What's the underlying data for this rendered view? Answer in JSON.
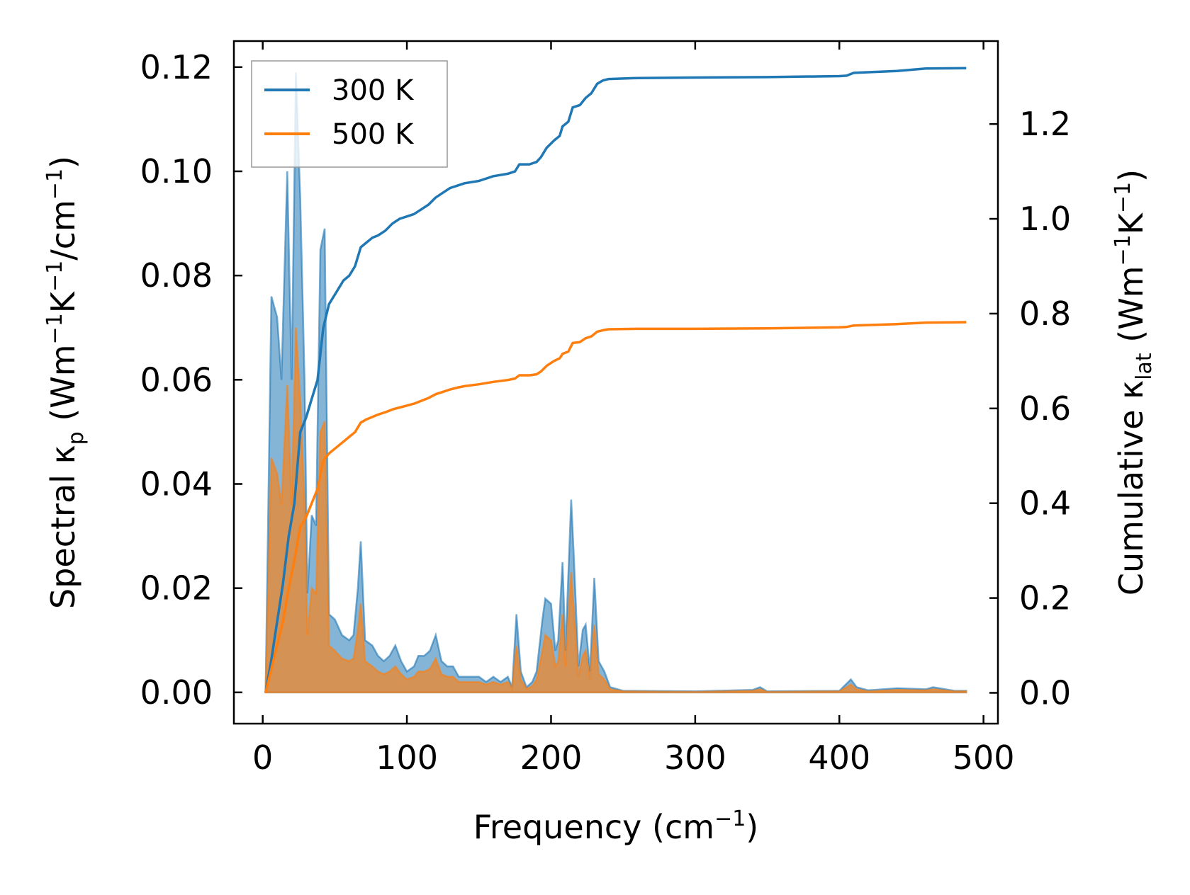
{
  "chart_data": {
    "type": "line",
    "x_label_main": "Frequency (cm",
    "x_label_sup": "−1",
    "x_label_end": ")",
    "xlim": [
      -20,
      510
    ],
    "x_ticks": [
      "0",
      "100",
      "200",
      "300",
      "400",
      "500"
    ],
    "x_tick_values": [
      0,
      100,
      200,
      300,
      400,
      500
    ],
    "left_axis": {
      "label_parts": [
        "Spectral κ",
        "p",
        " (Wm",
        "−1",
        "K",
        "−1",
        "/cm",
        "−1",
        ")"
      ],
      "ylim": [
        -0.006,
        0.125
      ],
      "ticks": [
        "0.00",
        "0.02",
        "0.04",
        "0.06",
        "0.08",
        "0.10",
        "0.12"
      ],
      "tick_values": [
        0,
        0.02,
        0.04,
        0.06,
        0.08,
        0.1,
        0.12
      ]
    },
    "right_axis": {
      "label_parts": [
        "Cumulative κ",
        "lat",
        " (Wm",
        "−1",
        "K",
        "−1",
        ")"
      ],
      "ylim": [
        -0.065,
        1.375
      ],
      "ticks": [
        "0.0",
        "0.2",
        "0.4",
        "0.6",
        "0.8",
        "1.0",
        "1.2"
      ],
      "tick_values": [
        0,
        0.2,
        0.4,
        0.6,
        0.8,
        1.0,
        1.2
      ]
    },
    "legend": {
      "position": "upper-left",
      "entries": [
        {
          "label": "300 K",
          "color": "#1f77b4"
        },
        {
          "label": "500 K",
          "color": "#ff7f0e"
        }
      ]
    },
    "series": [
      {
        "label": "300 K",
        "color": "#1f77b4",
        "spectral": [
          [
            2,
            0
          ],
          [
            6,
            0.076
          ],
          [
            10,
            0.072
          ],
          [
            13,
            0.06
          ],
          [
            17,
            0.1
          ],
          [
            20,
            0.06
          ],
          [
            23,
            0.119
          ],
          [
            26,
            0.095
          ],
          [
            29,
            0.06
          ],
          [
            31,
            0.019
          ],
          [
            34,
            0.034
          ],
          [
            37,
            0.032
          ],
          [
            40,
            0.085
          ],
          [
            43,
            0.089
          ],
          [
            46,
            0.015
          ],
          [
            50,
            0.014
          ],
          [
            55,
            0.011
          ],
          [
            60,
            0.01
          ],
          [
            63,
            0.011
          ],
          [
            66,
            0.02
          ],
          [
            68,
            0.029
          ],
          [
            71,
            0.01
          ],
          [
            76,
            0.009
          ],
          [
            80,
            0.007
          ],
          [
            84,
            0.006
          ],
          [
            88,
            0.007
          ],
          [
            92,
            0.009
          ],
          [
            96,
            0.006
          ],
          [
            100,
            0.004
          ],
          [
            105,
            0.005
          ],
          [
            108,
            0.007
          ],
          [
            112,
            0.007
          ],
          [
            116,
            0.008
          ],
          [
            120,
            0.011
          ],
          [
            124,
            0.006
          ],
          [
            128,
            0.005
          ],
          [
            132,
            0.005
          ],
          [
            136,
            0.003
          ],
          [
            140,
            0.003
          ],
          [
            145,
            0.003
          ],
          [
            150,
            0.003
          ],
          [
            155,
            0.002
          ],
          [
            160,
            0.003
          ],
          [
            165,
            0.002
          ],
          [
            170,
            0.003
          ],
          [
            173,
            0.001
          ],
          [
            176,
            0.015
          ],
          [
            179,
            0.004
          ],
          [
            183,
            0.001
          ],
          [
            187,
            0.002
          ],
          [
            190,
            0.004
          ],
          [
            194,
            0.014
          ],
          [
            196,
            0.018
          ],
          [
            200,
            0.017
          ],
          [
            203,
            0.008
          ],
          [
            205,
            0.01
          ],
          [
            208,
            0.025
          ],
          [
            210,
            0.008
          ],
          [
            214,
            0.037
          ],
          [
            216,
            0.025
          ],
          [
            219,
            0.005
          ],
          [
            222,
            0.012
          ],
          [
            224,
            0.013
          ],
          [
            227,
            0.004
          ],
          [
            230,
            0.022
          ],
          [
            233,
            0.006
          ],
          [
            237,
            0.004
          ],
          [
            241,
            0.001
          ],
          [
            250,
            0.0003
          ],
          [
            300,
            0.0002
          ],
          [
            340,
            0.0005
          ],
          [
            345,
            0.001
          ],
          [
            350,
            0.0002
          ],
          [
            400,
            0.0003
          ],
          [
            408,
            0.0025
          ],
          [
            412,
            0.001
          ],
          [
            420,
            0.0004
          ],
          [
            440,
            0.0008
          ],
          [
            460,
            0.0006
          ],
          [
            465,
            0.001
          ],
          [
            480,
            0.0003
          ],
          [
            488,
            0.0003
          ]
        ],
        "cumulative": [
          [
            2,
            0
          ],
          [
            6,
            0.07
          ],
          [
            10,
            0.15
          ],
          [
            14,
            0.23
          ],
          [
            18,
            0.33
          ],
          [
            22,
            0.4
          ],
          [
            26,
            0.55
          ],
          [
            30,
            0.58
          ],
          [
            34,
            0.62
          ],
          [
            38,
            0.66
          ],
          [
            42,
            0.77
          ],
          [
            46,
            0.82
          ],
          [
            50,
            0.84
          ],
          [
            56,
            0.87
          ],
          [
            60,
            0.88
          ],
          [
            64,
            0.9
          ],
          [
            68,
            0.94
          ],
          [
            72,
            0.95
          ],
          [
            76,
            0.96
          ],
          [
            80,
            0.965
          ],
          [
            85,
            0.975
          ],
          [
            90,
            0.99
          ],
          [
            95,
            1.0
          ],
          [
            100,
            1.005
          ],
          [
            105,
            1.01
          ],
          [
            110,
            1.02
          ],
          [
            115,
            1.03
          ],
          [
            120,
            1.045
          ],
          [
            125,
            1.055
          ],
          [
            130,
            1.065
          ],
          [
            135,
            1.07
          ],
          [
            140,
            1.075
          ],
          [
            150,
            1.08
          ],
          [
            160,
            1.09
          ],
          [
            170,
            1.095
          ],
          [
            175,
            1.1
          ],
          [
            178,
            1.115
          ],
          [
            185,
            1.115
          ],
          [
            190,
            1.12
          ],
          [
            193,
            1.13
          ],
          [
            197,
            1.15
          ],
          [
            202,
            1.165
          ],
          [
            206,
            1.175
          ],
          [
            208,
            1.195
          ],
          [
            212,
            1.205
          ],
          [
            215,
            1.235
          ],
          [
            220,
            1.24
          ],
          [
            224,
            1.255
          ],
          [
            228,
            1.265
          ],
          [
            232,
            1.285
          ],
          [
            236,
            1.292
          ],
          [
            240,
            1.295
          ],
          [
            260,
            1.297
          ],
          [
            300,
            1.298
          ],
          [
            350,
            1.299
          ],
          [
            400,
            1.301
          ],
          [
            405,
            1.302
          ],
          [
            410,
            1.308
          ],
          [
            440,
            1.312
          ],
          [
            460,
            1.317
          ],
          [
            488,
            1.318
          ]
        ]
      },
      {
        "label": "500 K",
        "color": "#ff7f0e",
        "spectral": [
          [
            2,
            0
          ],
          [
            6,
            0.045
          ],
          [
            10,
            0.042
          ],
          [
            13,
            0.036
          ],
          [
            17,
            0.059
          ],
          [
            20,
            0.036
          ],
          [
            23,
            0.07
          ],
          [
            26,
            0.056
          ],
          [
            29,
            0.036
          ],
          [
            31,
            0.011
          ],
          [
            34,
            0.02
          ],
          [
            37,
            0.019
          ],
          [
            40,
            0.05
          ],
          [
            43,
            0.052
          ],
          [
            46,
            0.009
          ],
          [
            50,
            0.008
          ],
          [
            55,
            0.0065
          ],
          [
            60,
            0.006
          ],
          [
            63,
            0.0065
          ],
          [
            66,
            0.012
          ],
          [
            68,
            0.017
          ],
          [
            71,
            0.006
          ],
          [
            76,
            0.005
          ],
          [
            80,
            0.004
          ],
          [
            84,
            0.0035
          ],
          [
            88,
            0.004
          ],
          [
            92,
            0.005
          ],
          [
            96,
            0.0035
          ],
          [
            100,
            0.0025
          ],
          [
            105,
            0.003
          ],
          [
            108,
            0.004
          ],
          [
            112,
            0.004
          ],
          [
            116,
            0.0045
          ],
          [
            120,
            0.0065
          ],
          [
            124,
            0.0035
          ],
          [
            128,
            0.003
          ],
          [
            132,
            0.003
          ],
          [
            136,
            0.002
          ],
          [
            140,
            0.002
          ],
          [
            145,
            0.002
          ],
          [
            150,
            0.002
          ],
          [
            155,
            0.0015
          ],
          [
            160,
            0.002
          ],
          [
            165,
            0.0015
          ],
          [
            170,
            0.002
          ],
          [
            173,
            0.0007
          ],
          [
            176,
            0.009
          ],
          [
            179,
            0.0025
          ],
          [
            183,
            0.0007
          ],
          [
            187,
            0.0012
          ],
          [
            190,
            0.0025
          ],
          [
            194,
            0.008
          ],
          [
            196,
            0.011
          ],
          [
            200,
            0.01
          ],
          [
            203,
            0.005
          ],
          [
            205,
            0.006
          ],
          [
            208,
            0.015
          ],
          [
            210,
            0.005
          ],
          [
            214,
            0.023
          ],
          [
            216,
            0.015
          ],
          [
            219,
            0.003
          ],
          [
            222,
            0.007
          ],
          [
            224,
            0.008
          ],
          [
            227,
            0.0025
          ],
          [
            230,
            0.013
          ],
          [
            233,
            0.0035
          ],
          [
            237,
            0.0025
          ],
          [
            241,
            0.0006
          ],
          [
            250,
            0.0002
          ],
          [
            300,
            0.0001
          ],
          [
            340,
            0.0003
          ],
          [
            345,
            0.0006
          ],
          [
            350,
            0.0001
          ],
          [
            400,
            0.0002
          ],
          [
            408,
            0.0015
          ],
          [
            412,
            0.0006
          ],
          [
            420,
            0.0002
          ],
          [
            440,
            0.0005
          ],
          [
            460,
            0.0004
          ],
          [
            465,
            0.0006
          ],
          [
            480,
            0.0002
          ],
          [
            488,
            0.0002
          ]
        ],
        "cumulative": [
          [
            2,
            0
          ],
          [
            6,
            0.05
          ],
          [
            10,
            0.1
          ],
          [
            14,
            0.15
          ],
          [
            18,
            0.22
          ],
          [
            22,
            0.28
          ],
          [
            26,
            0.35
          ],
          [
            30,
            0.37
          ],
          [
            34,
            0.4
          ],
          [
            38,
            0.43
          ],
          [
            42,
            0.49
          ],
          [
            46,
            0.505
          ],
          [
            50,
            0.515
          ],
          [
            56,
            0.53
          ],
          [
            60,
            0.54
          ],
          [
            64,
            0.55
          ],
          [
            68,
            0.57
          ],
          [
            72,
            0.577
          ],
          [
            76,
            0.582
          ],
          [
            80,
            0.587
          ],
          [
            85,
            0.592
          ],
          [
            90,
            0.598
          ],
          [
            95,
            0.602
          ],
          [
            100,
            0.606
          ],
          [
            105,
            0.61
          ],
          [
            110,
            0.616
          ],
          [
            115,
            0.622
          ],
          [
            120,
            0.63
          ],
          [
            125,
            0.635
          ],
          [
            130,
            0.64
          ],
          [
            135,
            0.644
          ],
          [
            140,
            0.647
          ],
          [
            150,
            0.651
          ],
          [
            160,
            0.656
          ],
          [
            170,
            0.66
          ],
          [
            175,
            0.663
          ],
          [
            178,
            0.67
          ],
          [
            185,
            0.67
          ],
          [
            190,
            0.672
          ],
          [
            193,
            0.678
          ],
          [
            197,
            0.69
          ],
          [
            202,
            0.7
          ],
          [
            206,
            0.706
          ],
          [
            208,
            0.715
          ],
          [
            212,
            0.72
          ],
          [
            215,
            0.738
          ],
          [
            220,
            0.74
          ],
          [
            224,
            0.748
          ],
          [
            228,
            0.752
          ],
          [
            232,
            0.762
          ],
          [
            236,
            0.765
          ],
          [
            240,
            0.767
          ],
          [
            260,
            0.768
          ],
          [
            300,
            0.768
          ],
          [
            350,
            0.769
          ],
          [
            400,
            0.771
          ],
          [
            405,
            0.772
          ],
          [
            410,
            0.775
          ],
          [
            440,
            0.778
          ],
          [
            460,
            0.781
          ],
          [
            488,
            0.782
          ]
        ]
      }
    ]
  }
}
